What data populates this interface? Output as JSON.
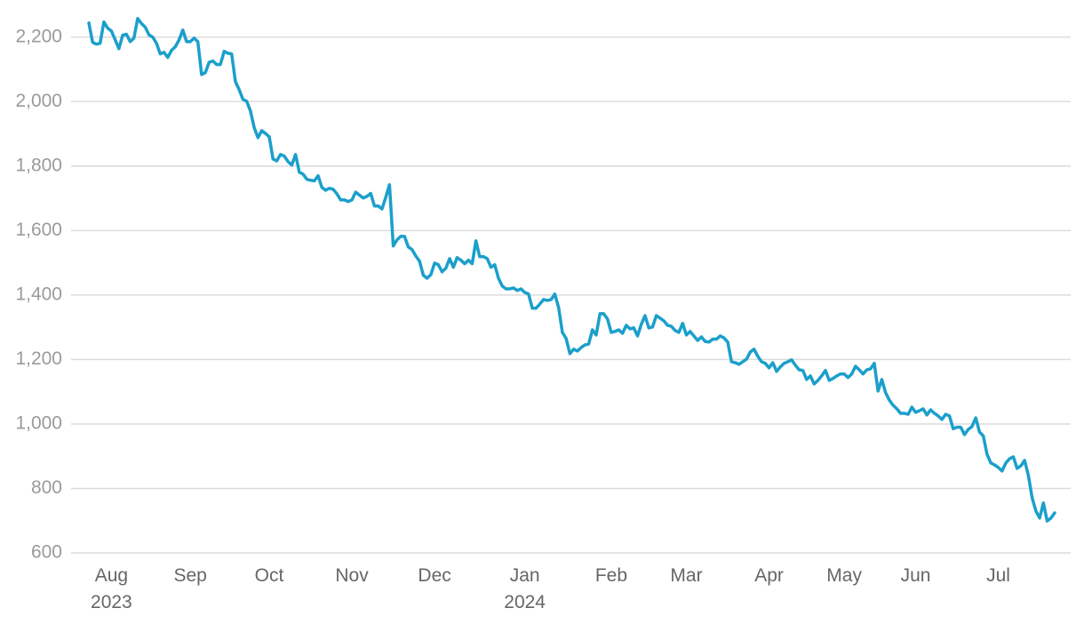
{
  "chart_data": {
    "type": "line",
    "color": "#1b9fcb",
    "grid": true,
    "ylim": [
      600,
      2260
    ],
    "yticks": [
      {
        "value": 600,
        "label": "600"
      },
      {
        "value": 800,
        "label": "800"
      },
      {
        "value": 1000,
        "label": "1,000"
      },
      {
        "value": 1200,
        "label": "1,200"
      },
      {
        "value": 1400,
        "label": "1,400"
      },
      {
        "value": 1600,
        "label": "1,600"
      },
      {
        "value": 1800,
        "label": "1,800"
      },
      {
        "value": 2000,
        "label": "2,000"
      },
      {
        "value": 2200,
        "label": "2,200"
      }
    ],
    "categories": [
      null,
      null,
      null,
      null,
      null,
      null,
      "Aug 2023",
      null,
      null,
      null,
      null,
      null,
      null,
      null,
      null,
      null,
      null,
      null,
      null,
      null,
      null,
      null,
      null,
      null,
      null,
      null,
      null,
      "Sep",
      null,
      null,
      null,
      null,
      null,
      null,
      null,
      null,
      null,
      null,
      null,
      null,
      null,
      null,
      null,
      null,
      null,
      null,
      null,
      null,
      "Oct",
      null,
      null,
      null,
      null,
      null,
      null,
      null,
      null,
      null,
      null,
      null,
      null,
      null,
      null,
      null,
      null,
      null,
      null,
      null,
      null,
      null,
      "Nov",
      null,
      null,
      null,
      null,
      null,
      null,
      null,
      null,
      null,
      null,
      null,
      null,
      null,
      null,
      null,
      null,
      null,
      null,
      null,
      null,
      null,
      "Dec",
      null,
      null,
      null,
      null,
      null,
      null,
      null,
      null,
      null,
      null,
      null,
      null,
      null,
      null,
      null,
      null,
      null,
      null,
      null,
      null,
      null,
      null,
      null,
      "Jan 2024",
      null,
      null,
      null,
      null,
      null,
      null,
      null,
      null,
      null,
      null,
      null,
      null,
      null,
      null,
      null,
      null,
      null,
      null,
      null,
      null,
      null,
      null,
      "Feb",
      null,
      null,
      null,
      null,
      null,
      null,
      null,
      null,
      null,
      null,
      null,
      null,
      null,
      null,
      null,
      null,
      null,
      null,
      null,
      "Mar",
      null,
      null,
      null,
      null,
      null,
      null,
      null,
      null,
      null,
      null,
      null,
      null,
      null,
      null,
      null,
      null,
      null,
      null,
      null,
      null,
      null,
      "Apr",
      null,
      null,
      null,
      null,
      null,
      null,
      null,
      null,
      null,
      null,
      null,
      null,
      null,
      null,
      null,
      null,
      null,
      null,
      null,
      "May",
      null,
      null,
      null,
      null,
      null,
      null,
      null,
      null,
      null,
      null,
      null,
      null,
      null,
      null,
      null,
      null,
      null,
      null,
      "Jun",
      null,
      null,
      null,
      null,
      null,
      null,
      null,
      null,
      null,
      null,
      null,
      null,
      null,
      null,
      null,
      null,
      null,
      null,
      null,
      null,
      null,
      "Jul",
      null,
      null,
      null,
      null,
      null,
      null,
      null,
      null,
      null,
      null,
      null,
      null,
      null,
      null,
      null
    ],
    "values": [
      2244,
      2184,
      2178,
      2181,
      2247,
      2228,
      2219,
      2192,
      2164,
      2206,
      2209,
      2186,
      2197,
      2258,
      2242,
      2231,
      2207,
      2200,
      2181,
      2148,
      2153,
      2137,
      2159,
      2170,
      2191,
      2222,
      2186,
      2186,
      2197,
      2186,
      2084,
      2090,
      2122,
      2126,
      2115,
      2115,
      2156,
      2150,
      2148,
      2062,
      2037,
      2007,
      2001,
      1971,
      1919,
      1888,
      1910,
      1901,
      1891,
      1822,
      1816,
      1836,
      1831,
      1814,
      1803,
      1836,
      1781,
      1775,
      1759,
      1756,
      1754,
      1770,
      1734,
      1725,
      1731,
      1728,
      1714,
      1695,
      1695,
      1690,
      1695,
      1719,
      1710,
      1701,
      1706,
      1715,
      1676,
      1676,
      1667,
      1703,
      1742,
      1552,
      1571,
      1582,
      1582,
      1549,
      1541,
      1521,
      1505,
      1461,
      1452,
      1463,
      1499,
      1494,
      1472,
      1483,
      1513,
      1486,
      1516,
      1508,
      1497,
      1508,
      1497,
      1568,
      1519,
      1519,
      1513,
      1486,
      1494,
      1452,
      1428,
      1419,
      1419,
      1422,
      1414,
      1419,
      1408,
      1403,
      1359,
      1359,
      1372,
      1386,
      1383,
      1386,
      1403,
      1361,
      1284,
      1265,
      1218,
      1232,
      1226,
      1237,
      1245,
      1248,
      1292,
      1276,
      1342,
      1342,
      1326,
      1284,
      1287,
      1292,
      1281,
      1306,
      1295,
      1298,
      1273,
      1309,
      1336,
      1298,
      1301,
      1336,
      1328,
      1320,
      1306,
      1303,
      1290,
      1284,
      1312,
      1276,
      1287,
      1273,
      1259,
      1270,
      1256,
      1254,
      1263,
      1263,
      1273,
      1267,
      1254,
      1193,
      1190,
      1185,
      1193,
      1201,
      1223,
      1232,
      1210,
      1193,
      1188,
      1174,
      1190,
      1163,
      1177,
      1188,
      1193,
      1199,
      1182,
      1168,
      1166,
      1138,
      1149,
      1124,
      1135,
      1149,
      1166,
      1135,
      1141,
      1149,
      1155,
      1155,
      1144,
      1155,
      1179,
      1168,
      1155,
      1168,
      1171,
      1188,
      1102,
      1138,
      1097,
      1074,
      1058,
      1047,
      1033,
      1033,
      1030,
      1052,
      1036,
      1041,
      1047,
      1028,
      1044,
      1033,
      1025,
      1014,
      1030,
      1025,
      985,
      990,
      990,
      967,
      983,
      992,
      1019,
      975,
      963,
      906,
      879,
      873,
      865,
      854,
      879,
      892,
      898,
      862,
      870,
      887,
      840,
      771,
      730,
      708,
      755,
      699,
      708,
      724
    ]
  }
}
